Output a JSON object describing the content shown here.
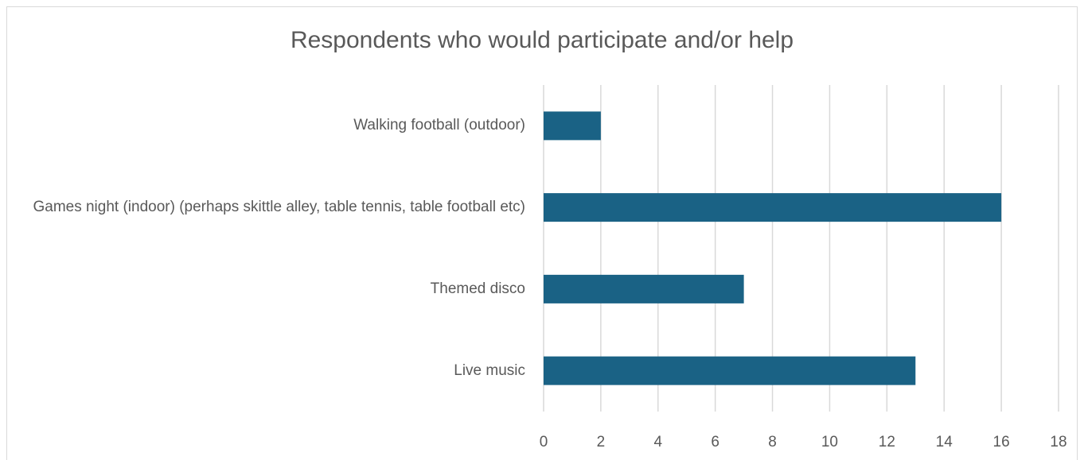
{
  "chart_data": {
    "type": "bar",
    "orientation": "horizontal",
    "title": "Respondents who would participate and/or help",
    "categories": [
      "Walking football (outdoor)",
      "Games night (indoor) (perhaps skittle alley, table tennis, table football etc)",
      "Themed disco",
      "Live music"
    ],
    "values": [
      2,
      16,
      7,
      13
    ],
    "xlim": [
      0,
      18
    ],
    "xticks": [
      "0",
      "2",
      "4",
      "6",
      "8",
      "10",
      "12",
      "14",
      "16",
      "18"
    ],
    "grid": true,
    "bar_color": "#1a6285",
    "grid_color": "#d9d9d9",
    "text_color": "#595959"
  }
}
